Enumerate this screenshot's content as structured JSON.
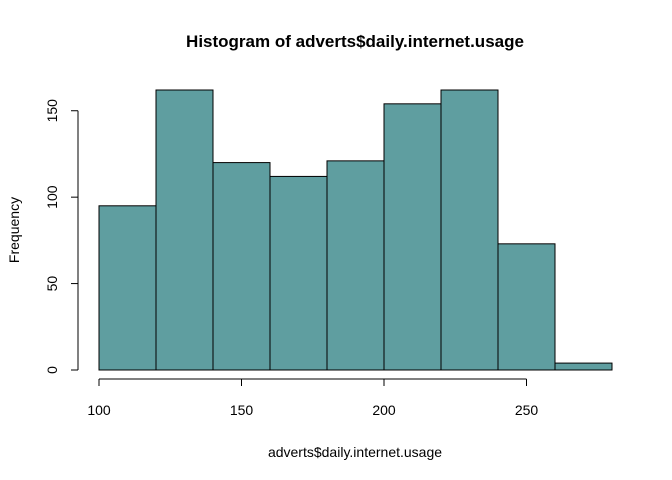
{
  "chart_data": {
    "type": "bar",
    "title": "Histogram of adverts$daily.internet.usage",
    "xlabel": "adverts$daily.internet.usage",
    "ylabel": "Frequency",
    "bins": [
      {
        "start": 100,
        "end": 120,
        "count": 95
      },
      {
        "start": 120,
        "end": 140,
        "count": 162
      },
      {
        "start": 140,
        "end": 160,
        "count": 120
      },
      {
        "start": 160,
        "end": 180,
        "count": 112
      },
      {
        "start": 180,
        "end": 200,
        "count": 121
      },
      {
        "start": 200,
        "end": 220,
        "count": 154
      },
      {
        "start": 220,
        "end": 240,
        "count": 162
      },
      {
        "start": 240,
        "end": 260,
        "count": 73
      },
      {
        "start": 260,
        "end": 280,
        "count": 4
      }
    ],
    "xlim": [
      100,
      280
    ],
    "ylim": [
      0,
      162
    ],
    "xticks": [
      100,
      150,
      200,
      250
    ],
    "yticks": [
      0,
      50,
      100,
      150
    ],
    "bar_color": "#5F9EA0",
    "border_color": "#000000",
    "grid": false
  }
}
